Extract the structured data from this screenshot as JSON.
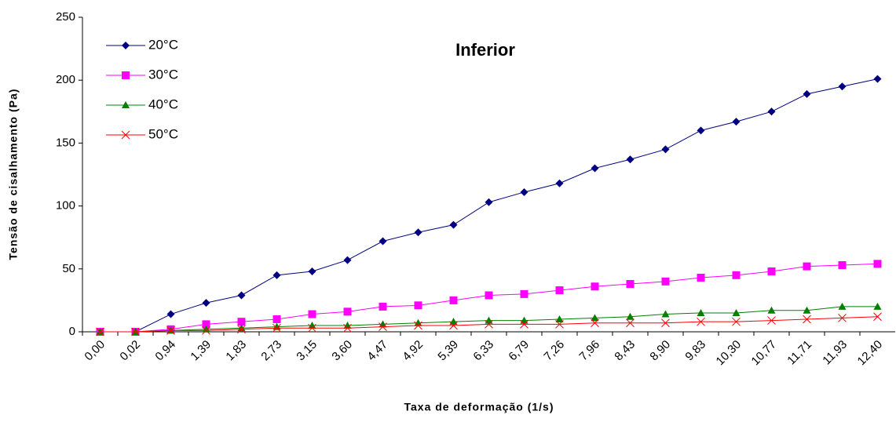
{
  "chart_data": {
    "type": "line",
    "title": "Inferior",
    "x_label": "Taxa de deformação (1/s)",
    "y_label": "Tensão de cisalhamento (Pa)",
    "categories": [
      "0,00",
      "0,02",
      "0,94",
      "1,39",
      "1,83",
      "2,73",
      "3,15",
      "3,60",
      "4,47",
      "4,92",
      "5,39",
      "6,33",
      "6,79",
      "7,26",
      "7,96",
      "8,43",
      "8,90",
      "9,83",
      "10,30",
      "10,77",
      "11,71",
      "11,93",
      "12,40"
    ],
    "series": [
      {
        "name": "20°C",
        "color": "#000080",
        "marker": "diamond",
        "values": [
          0,
          0,
          14,
          23,
          29,
          45,
          48,
          57,
          72,
          79,
          85,
          103,
          111,
          118,
          130,
          137,
          145,
          160,
          167,
          175,
          189,
          195,
          201
        ]
      },
      {
        "name": "30°C",
        "color": "#ff00ff",
        "marker": "square",
        "values": [
          0,
          0,
          2,
          6,
          8,
          10,
          14,
          16,
          20,
          21,
          25,
          29,
          30,
          33,
          36,
          38,
          40,
          43,
          45,
          48,
          52,
          53,
          54
        ]
      },
      {
        "name": "40°C",
        "color": "#008000",
        "marker": "triangle",
        "values": [
          0,
          0,
          1,
          2,
          3,
          4,
          5,
          5,
          6,
          7,
          8,
          9,
          9,
          10,
          11,
          12,
          14,
          15,
          15,
          17,
          17,
          20,
          20
        ]
      },
      {
        "name": "50°C",
        "color": "#ff0000",
        "marker": "x",
        "values": [
          0,
          0,
          1,
          1,
          2,
          3,
          3,
          3,
          4,
          5,
          5,
          6,
          6,
          6,
          7,
          7,
          7,
          8,
          8,
          9,
          10,
          11,
          12
        ]
      }
    ],
    "ylim": [
      0,
      250
    ],
    "yticks": [
      0,
      50,
      100,
      150,
      200,
      250
    ],
    "legend": "upper left"
  }
}
